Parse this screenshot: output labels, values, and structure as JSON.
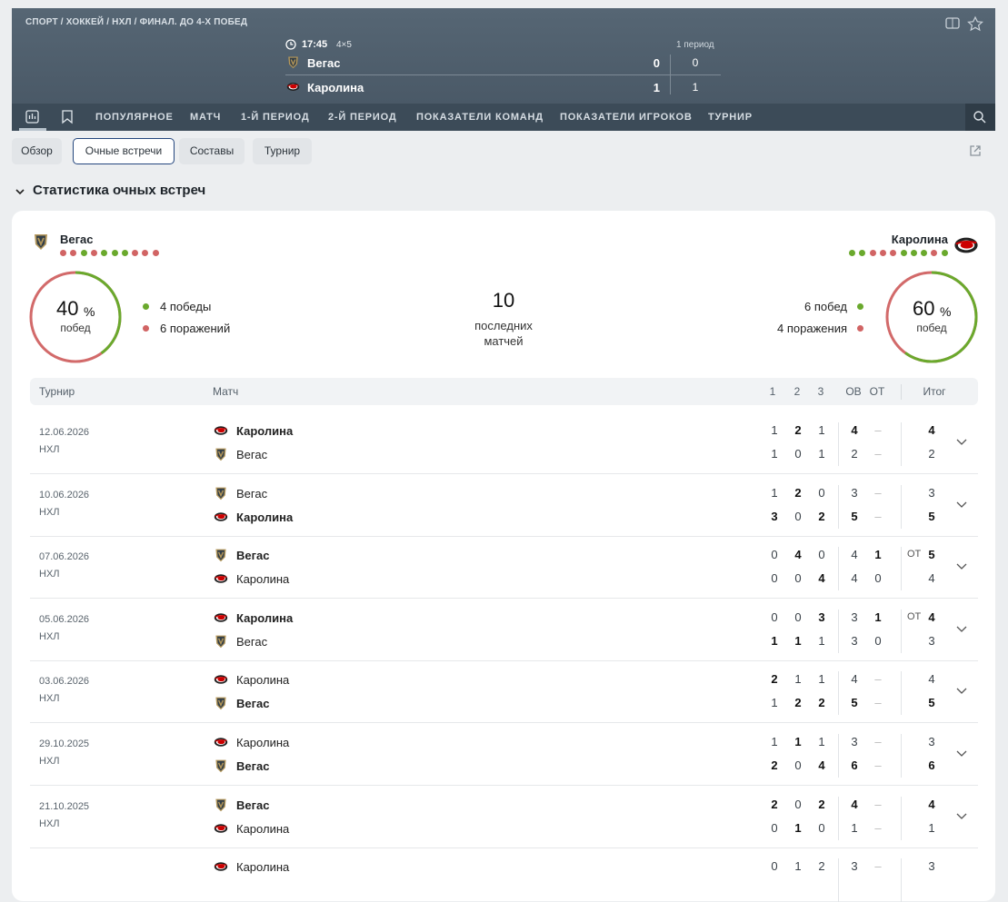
{
  "header": {
    "breadcrumb": "СПОРТ / ХОККЕЙ / НХЛ / ФИНАЛ. ДО 4-Х ПОБЕД",
    "time": "17:45",
    "format": "4×5",
    "period_label": "1 период",
    "teams": [
      {
        "name": "Вегас",
        "score": 0,
        "period_score": 0
      },
      {
        "name": "Каролина",
        "score": 1,
        "period_score": 1
      }
    ]
  },
  "nav": [
    "ПОПУЛЯРНОЕ",
    "МАТЧ",
    "1-Й ПЕРИОД",
    "2-Й ПЕРИОД",
    "ПОКАЗАТЕЛИ КОМАНД",
    "ПОКАЗАТЕЛИ ИГРОКОВ",
    "ТУРНИР"
  ],
  "tabs": [
    "Обзор",
    "Очные встречи",
    "Составы",
    "Турнир"
  ],
  "section_title": "Статистика очных встреч",
  "summary": {
    "left": {
      "team": "Вегас",
      "percent": 40,
      "percent_unit": "%",
      "percent_caption": "побед",
      "wins": "4 победы",
      "losses": "6 поражений"
    },
    "center": {
      "count": 10,
      "caption": "последних матчей"
    },
    "right": {
      "team": "Каролина",
      "percent": 60,
      "percent_unit": "%",
      "percent_caption": "побед",
      "wins": "6 побед",
      "losses": "4 поражения"
    }
  },
  "table": {
    "columns": [
      "Турнир",
      "Матч",
      "1",
      "2",
      "3",
      "ОВ",
      "ОТ",
      "Итог"
    ],
    "rows": [
      {
        "date": "12.06.2026",
        "league": "НХЛ",
        "teams": [
          {
            "name": "Каролина",
            "cells": [
              1,
              2,
              1,
              4,
              "–",
              4
            ]
          },
          {
            "name": "Вегас",
            "cells": [
              1,
              0,
              1,
              2,
              "–",
              2
            ]
          }
        ]
      },
      {
        "date": "10.06.2026",
        "league": "НХЛ",
        "teams": [
          {
            "name": "Вегас",
            "cells": [
              1,
              2,
              0,
              3,
              "–",
              3
            ]
          },
          {
            "name": "Каролина",
            "cells": [
              3,
              0,
              2,
              5,
              "–",
              5
            ]
          }
        ]
      },
      {
        "date": "07.06.2026",
        "league": "НХЛ",
        "teams": [
          {
            "name": "Вегас",
            "cells": [
              0,
              4,
              0,
              4,
              1,
              5
            ],
            "ot_label": "ОТ"
          },
          {
            "name": "Каролина",
            "cells": [
              0,
              0,
              4,
              4,
              0,
              4
            ]
          }
        ]
      },
      {
        "date": "05.06.2026",
        "league": "НХЛ",
        "teams": [
          {
            "name": "Каролина",
            "cells": [
              0,
              0,
              3,
              3,
              1,
              4
            ],
            "ot_label": "ОТ"
          },
          {
            "name": "Вегас",
            "cells": [
              1,
              1,
              1,
              3,
              0,
              3
            ]
          }
        ]
      },
      {
        "date": "03.06.2026",
        "league": "НХЛ",
        "teams": [
          {
            "name": "Каролина",
            "cells": [
              2,
              1,
              1,
              4,
              "–",
              4
            ]
          },
          {
            "name": "Вегас",
            "cells": [
              1,
              2,
              2,
              5,
              "–",
              5
            ]
          }
        ]
      },
      {
        "date": "29.10.2025",
        "league": "НХЛ",
        "teams": [
          {
            "name": "Каролина",
            "cells": [
              1,
              1,
              1,
              3,
              "–",
              3
            ]
          },
          {
            "name": "Вегас",
            "cells": [
              2,
              0,
              4,
              6,
              "–",
              6
            ]
          }
        ]
      },
      {
        "date": "21.10.2025",
        "league": "НХЛ",
        "teams": [
          {
            "name": "Вегас",
            "cells": [
              2,
              0,
              2,
              4,
              "–",
              4
            ]
          },
          {
            "name": "Каролина",
            "cells": [
              0,
              1,
              0,
              1,
              "–",
              1
            ]
          }
        ]
      },
      {
        "teams": [
          {
            "name": "Каролина",
            "cells": [
              0,
              1,
              2,
              3,
              "–",
              3
            ]
          }
        ]
      }
    ]
  }
}
